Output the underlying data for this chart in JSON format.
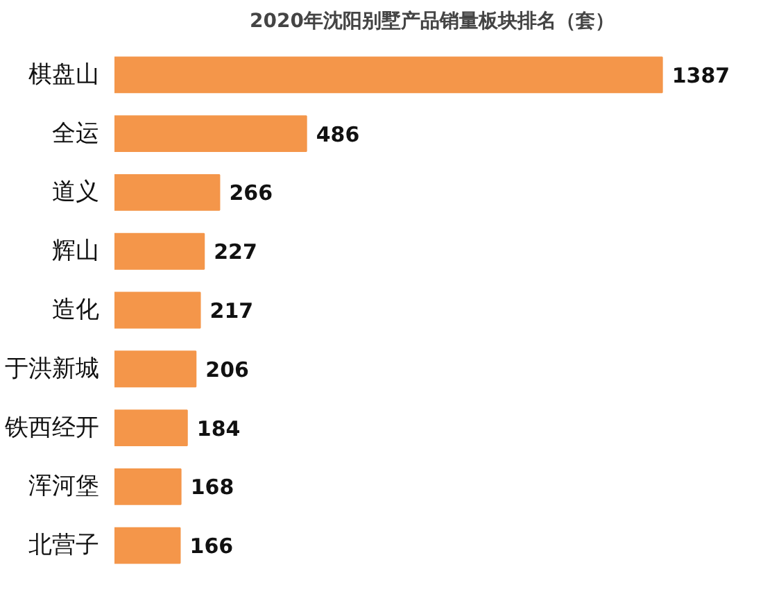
{
  "chart_data": {
    "type": "bar",
    "orientation": "horizontal",
    "title": "2020年沈阳别墅产品销量板块排名（套）",
    "categories": [
      "棋盘山",
      "全运",
      "道义",
      "辉山",
      "造化",
      "于洪新城",
      "铁西经开",
      "浑河堡",
      "北营子"
    ],
    "values": [
      1387,
      486,
      266,
      227,
      217,
      206,
      184,
      168,
      166
    ],
    "color": "#f4964a",
    "data_labels": true,
    "grid": false
  }
}
